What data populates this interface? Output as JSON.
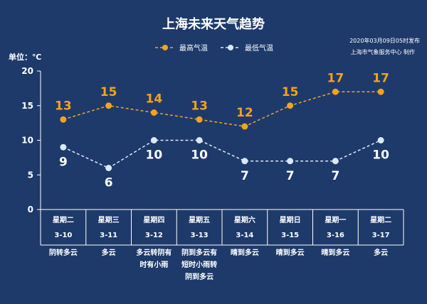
{
  "header": {
    "title": "上海未来天气趋势",
    "issue_time": "2020年03月09日05时发布",
    "producer": "上海市气象服务中心  制作"
  },
  "colors": {
    "background": "#1e3a6b",
    "high_series": "#f5a21c",
    "low_series": "#dce8f5",
    "axis": "#ffffff"
  },
  "chart_data": {
    "type": "line",
    "title": "上海未来天气趋势",
    "ylabel": "单位：℃",
    "ylim": [
      0,
      20
    ],
    "yticks": [
      0,
      5,
      10,
      15,
      20
    ],
    "grid": false,
    "legend_position": "top-center",
    "categories": [
      "3-10",
      "3-11",
      "3-12",
      "3-13",
      "3-14",
      "3-15",
      "3-16",
      "3-17"
    ],
    "weekdays": [
      "星期二",
      "星期三",
      "星期四",
      "星期五",
      "星期六",
      "星期日",
      "星期一",
      "星期二"
    ],
    "series": [
      {
        "name": "最高气温",
        "values": [
          13,
          15,
          14,
          13,
          12,
          15,
          17,
          17
        ]
      },
      {
        "name": "最低气温",
        "values": [
          9,
          6,
          10,
          10,
          7,
          7,
          7,
          10
        ]
      }
    ],
    "weather": [
      [
        "阴转多云"
      ],
      [
        "多云"
      ],
      [
        "多云转阴有",
        "时有小雨"
      ],
      [
        "阴到多云有",
        "短时小雨转",
        "阴到多云"
      ],
      [
        "晴到多云"
      ],
      [
        "晴到多云"
      ],
      [
        "晴到多云"
      ],
      [
        "多云"
      ]
    ]
  }
}
